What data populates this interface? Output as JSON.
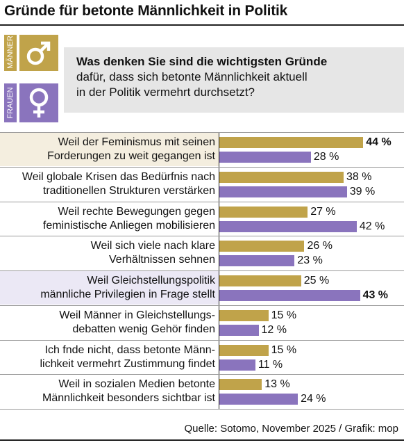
{
  "title": "Gründe für betonte Männlichkeit in Politik",
  "legend": {
    "men_label": "MÄNNER",
    "women_label": "FRAUEN",
    "men_icon": "male-symbol-icon",
    "women_icon": "female-symbol-icon"
  },
  "question": {
    "line1": "Was denken Sie sind die wichtigsten Gründe",
    "line2": "dafür, dass sich betonte Männlichkeit aktuell",
    "line3": "in der Politik vermehrt durchsetzt?"
  },
  "colors": {
    "men": "#c0a34a",
    "women": "#8a74bd",
    "men_highlight": "#f4eedf",
    "women_highlight": "#ebe8f5",
    "question_bg": "#e6e6e6"
  },
  "chart_data": {
    "type": "bar",
    "orientation": "horizontal",
    "unit": "%",
    "xlim": [
      0,
      45
    ],
    "categories": [
      [
        "Weil der Feminismus mit seinen",
        "Forderungen zu weit gegangen ist"
      ],
      [
        "Weil globale Krisen das Bedürfnis nach",
        "traditionellen Strukturen verstärken"
      ],
      [
        "Weil rechte Bewegungen gegen",
        "feministische Anliegen mobilisieren"
      ],
      [
        "Weil sich viele nach klare",
        "Verhältnissen sehnen"
      ],
      [
        "Weil Gleichstellungspolitik",
        "männliche Privilegien in Frage stellt"
      ],
      [
        "Weil Männer in Gleichstellungs-",
        "debatten wenig Gehör finden"
      ],
      [
        "Ich fnde nicht, dass betonte Männ-",
        "lichkeit vermehrt Zustimmung findet"
      ],
      [
        "Weil in sozialen Medien betonte",
        "Männlichkeit besonders sichtbar ist"
      ]
    ],
    "series": [
      {
        "name": "MÄNNER",
        "values": [
          44,
          38,
          27,
          26,
          25,
          15,
          15,
          13
        ]
      },
      {
        "name": "FRAUEN",
        "values": [
          28,
          39,
          42,
          23,
          43,
          12,
          11,
          24
        ]
      }
    ],
    "labels": {
      "men": [
        "44 %",
        "38 %",
        "27 %",
        "26 %",
        "25 %",
        "15 %",
        "15 %",
        "13 %"
      ],
      "women": [
        "28 %",
        "39 %",
        "42 %",
        "23 %",
        "43 %",
        "12 %",
        "11 %",
        "24 %"
      ]
    },
    "bold_labels": {
      "men": [
        true,
        false,
        false,
        false,
        false,
        false,
        false,
        false
      ],
      "women": [
        false,
        false,
        false,
        false,
        true,
        false,
        false,
        false
      ]
    },
    "highlight_rows": [
      "men",
      null,
      null,
      null,
      "women",
      null,
      null,
      null
    ]
  },
  "source": "Quelle: Sotomo, November 2025 / Grafik: mop"
}
